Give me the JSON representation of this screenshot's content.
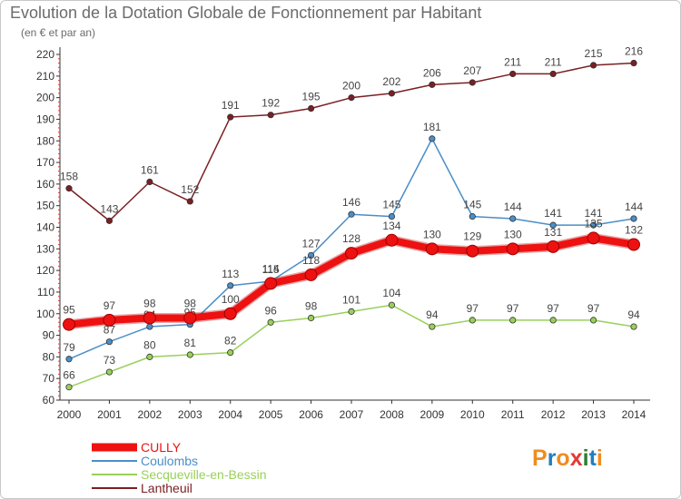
{
  "title": "Evolution de la Dotation Globale de Fonctionnement par Habitant",
  "subtitle": "(en € et par an)",
  "logo": {
    "text": "Proxiti",
    "colors": [
      "#f08c1e",
      "#1f7ec2",
      "#f08c1e",
      "#e53935",
      "#2e7d32",
      "#1f7ec2",
      "#f08c1e"
    ]
  },
  "chart_data": {
    "type": "line",
    "title": "Evolution de la Dotation Globale de Fonctionnement par Habitant",
    "subtitle": "(en € et par an)",
    "x": [
      "2000",
      "2001",
      "2002",
      "2003",
      "2004",
      "2005",
      "2006",
      "2007",
      "2008",
      "2009",
      "2010",
      "2011",
      "2012",
      "2013",
      "2014"
    ],
    "ylim": [
      60,
      220
    ],
    "yticks": [
      60,
      70,
      80,
      90,
      100,
      110,
      120,
      130,
      140,
      150,
      160,
      170,
      180,
      190,
      200,
      210,
      220
    ],
    "grid": false,
    "legend_position": "bottom-left",
    "series": [
      {
        "name": "Lantheuil",
        "color": "#7a1f23",
        "values": [
          158,
          143,
          161,
          152,
          191,
          192,
          195,
          200,
          202,
          206,
          207,
          211,
          211,
          215,
          216
        ]
      },
      {
        "name": "Secqueville-en-Bessin",
        "color": "#99d05a",
        "values": [
          66,
          73,
          80,
          81,
          82,
          96,
          98,
          101,
          104,
          94,
          97,
          97,
          97,
          97,
          94
        ]
      },
      {
        "name": "Coulombs",
        "color": "#4a8ec8",
        "values": [
          79,
          87,
          94,
          95,
          113,
          115,
          127,
          146,
          145,
          181,
          145,
          144,
          141,
          141,
          144
        ]
      },
      {
        "name": "CULLY",
        "color": "#ee1111",
        "values": [
          95,
          97,
          98,
          98,
          100,
          114,
          118,
          128,
          134,
          130,
          129,
          130,
          131,
          135,
          132
        ]
      }
    ]
  }
}
